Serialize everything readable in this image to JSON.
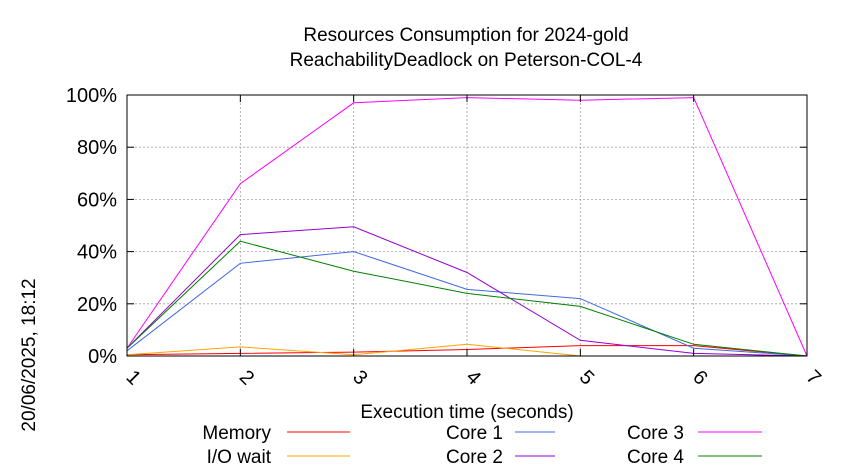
{
  "timestamp": "20/06/2025, 18:12",
  "chart_data": {
    "type": "line",
    "title": "Resources Consumption for 2024-gold",
    "subtitle": "ReachabilityDeadlock on Peterson-COL-4",
    "xlabel": "Execution time (seconds)",
    "ylabel": "",
    "xlim": [
      1,
      7
    ],
    "ylim": [
      0,
      100
    ],
    "x_ticks": [
      "1",
      "2",
      "3",
      "4",
      "5",
      "6",
      "7"
    ],
    "y_ticks": [
      "0%",
      "20%",
      "40%",
      "60%",
      "80%",
      "100%"
    ],
    "grid": true,
    "legend_position": "bottom",
    "x": [
      1,
      2,
      3,
      4,
      5,
      6,
      7
    ],
    "series": [
      {
        "name": "Memory",
        "color": "#ff0000",
        "values": [
          0.5,
          1.0,
          1.5,
          2.5,
          4.0,
          4.0,
          0
        ]
      },
      {
        "name": "I/O wait",
        "color": "#ffa500",
        "values": [
          0.5,
          3.5,
          0.5,
          4.5,
          0,
          0,
          0
        ]
      },
      {
        "name": "Core 1",
        "color": "#4169e1",
        "values": [
          2.0,
          35.5,
          40.0,
          25.5,
          22.0,
          3.0,
          0
        ]
      },
      {
        "name": "Core 2",
        "color": "#9400d3",
        "values": [
          3.0,
          46.5,
          49.5,
          32.0,
          6.0,
          1.0,
          0
        ]
      },
      {
        "name": "Core 3",
        "color": "#ff00ff",
        "values": [
          3.0,
          66.0,
          97.0,
          99.0,
          98.0,
          99.0,
          0
        ]
      },
      {
        "name": "Core 4",
        "color": "#008000",
        "values": [
          3.0,
          44.0,
          32.5,
          24.0,
          19.0,
          4.5,
          0
        ]
      }
    ]
  }
}
